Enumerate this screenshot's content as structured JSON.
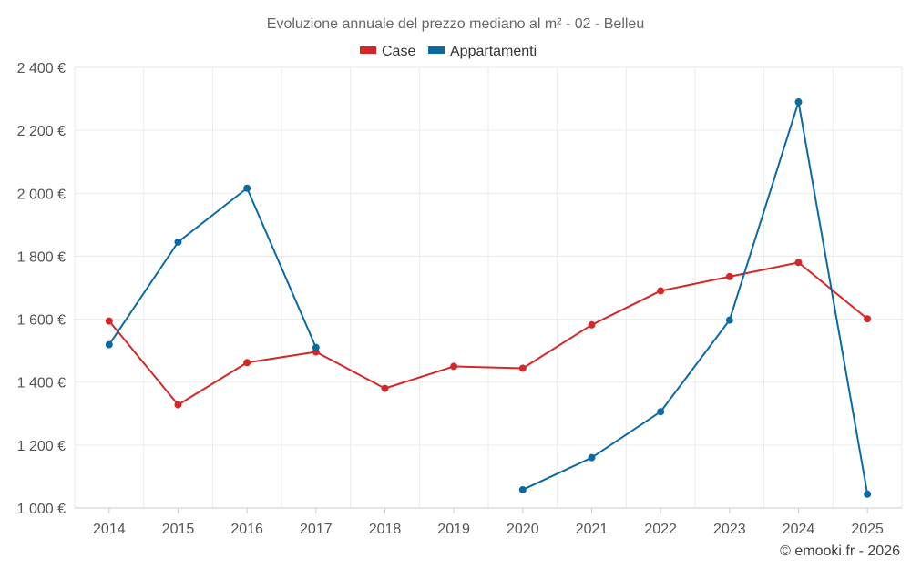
{
  "chart_data": {
    "type": "line",
    "title": "Evoluzione annuale del prezzo mediano al m² - 02 - Belleu",
    "xlabel": "",
    "ylabel": "",
    "categories": [
      "2014",
      "2015",
      "2016",
      "2017",
      "2018",
      "2019",
      "2020",
      "2021",
      "2022",
      "2023",
      "2024",
      "2025"
    ],
    "y_ticks": [
      1000,
      1200,
      1400,
      1600,
      1800,
      2000,
      2200,
      2400
    ],
    "y_tick_labels": [
      "1 000 €",
      "1 200 €",
      "1 400 €",
      "1 600 €",
      "1 800 €",
      "2 000 €",
      "2 200 €",
      "2 400 €"
    ],
    "ylim": [
      1000,
      2400
    ],
    "grid": true,
    "legend_position": "top-center",
    "series": [
      {
        "name": "Case",
        "color": "#d62728",
        "values": [
          1594,
          1328,
          1462,
          1496,
          1380,
          1450,
          1444,
          1582,
          1690,
          1735,
          1780,
          1601
        ]
      },
      {
        "name": "Appartamenti",
        "color": "#0b6aa2",
        "values": [
          1519,
          1845,
          2016,
          1510,
          null,
          null,
          1058,
          1160,
          1306,
          1597,
          2290,
          1044
        ]
      }
    ],
    "credit": "© emooki.fr - 2026"
  }
}
